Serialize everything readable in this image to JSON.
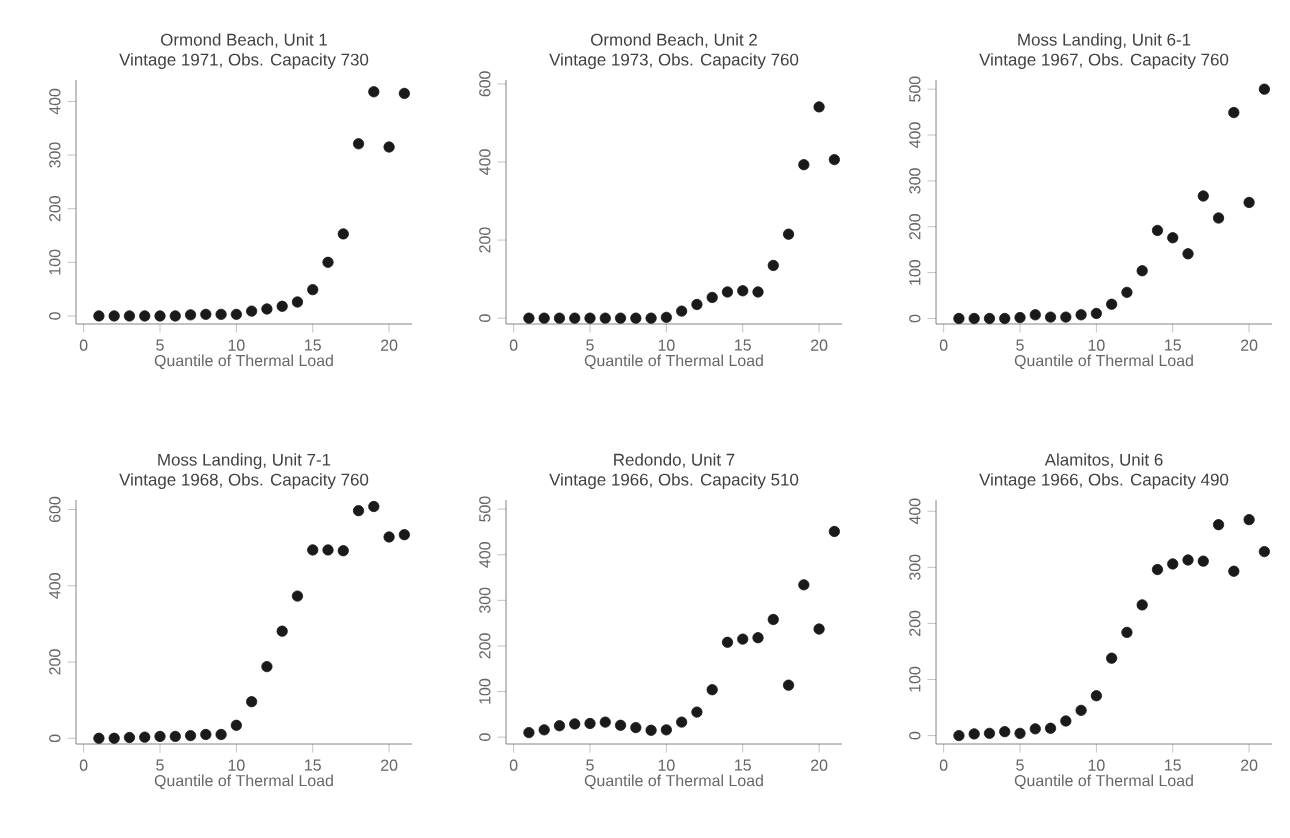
{
  "chart_data": [
    {
      "type": "scatter",
      "title": "Ormond Beach, Unit 1",
      "subtitle": "Vintage 1971, Obs. Capacity 730",
      "xlabel": "Quantile of Thermal Load",
      "marker": "circle",
      "color": "#1a1a1a",
      "x": [
        1,
        2,
        3,
        4,
        5,
        6,
        7,
        8,
        9,
        10,
        11,
        12,
        13,
        14,
        15,
        16,
        17,
        18,
        19,
        20,
        21
      ],
      "values": [
        0,
        0,
        0,
        0,
        0,
        0,
        2,
        3,
        3,
        3,
        9,
        13,
        18,
        26,
        49,
        100,
        153,
        321,
        418,
        315,
        415
      ],
      "xlim": [
        -0.5,
        21.5
      ],
      "ylim": [
        -15,
        440
      ],
      "xticks": [
        0,
        5,
        10,
        15,
        20
      ],
      "yticks": [
        0,
        100,
        200,
        300,
        400
      ]
    },
    {
      "type": "scatter",
      "title": "Ormond Beach, Unit 2",
      "subtitle": "Vintage 1973, Obs. Capacity 760",
      "xlabel": "Quantile of Thermal Load",
      "marker": "circle",
      "color": "#1a1a1a",
      "x": [
        1,
        2,
        3,
        4,
        5,
        6,
        7,
        8,
        9,
        10,
        11,
        12,
        13,
        14,
        15,
        16,
        17,
        18,
        19,
        20,
        21
      ],
      "values": [
        0,
        0,
        0,
        0,
        0,
        0,
        0,
        0,
        0,
        2,
        18,
        35,
        53,
        67,
        70,
        67,
        135,
        215,
        393,
        541,
        406
      ],
      "xlim": [
        -0.5,
        21.5
      ],
      "ylim": [
        -15,
        610
      ],
      "xticks": [
        0,
        5,
        10,
        15,
        20
      ],
      "yticks": [
        0,
        200,
        400,
        600
      ]
    },
    {
      "type": "scatter",
      "title": "Moss Landing, Unit 6-1",
      "subtitle": "Vintage 1967, Obs. Capacity 760",
      "xlabel": "Quantile of Thermal Load",
      "marker": "circle",
      "color": "#1a1a1a",
      "x": [
        1,
        2,
        3,
        4,
        5,
        6,
        7,
        8,
        9,
        10,
        11,
        12,
        13,
        14,
        15,
        16,
        17,
        18,
        19,
        20,
        21
      ],
      "values": [
        0,
        0,
        0,
        0,
        2,
        8,
        3,
        3,
        8,
        11,
        31,
        57,
        104,
        192,
        176,
        141,
        267,
        219,
        449,
        253,
        500
      ],
      "xlim": [
        -0.5,
        21.5
      ],
      "ylim": [
        -12,
        520
      ],
      "xticks": [
        0,
        5,
        10,
        15,
        20
      ],
      "yticks": [
        0,
        100,
        200,
        300,
        400,
        500
      ]
    },
    {
      "type": "scatter",
      "title": "Moss Landing, Unit 7-1",
      "subtitle": "Vintage 1968, Obs. Capacity 760",
      "xlabel": "Quantile of Thermal Load",
      "marker": "circle",
      "color": "#1a1a1a",
      "x": [
        1,
        2,
        3,
        4,
        5,
        6,
        7,
        8,
        9,
        10,
        11,
        12,
        13,
        14,
        15,
        16,
        17,
        18,
        19,
        20,
        21
      ],
      "values": [
        0,
        0,
        2,
        3,
        5,
        5,
        7,
        10,
        10,
        34,
        96,
        188,
        281,
        373,
        494,
        494,
        492,
        597,
        608,
        528,
        534
      ],
      "xlim": [
        -0.5,
        21.5
      ],
      "ylim": [
        -15,
        625
      ],
      "xticks": [
        0,
        5,
        10,
        15,
        20
      ],
      "yticks": [
        0,
        200,
        400,
        600
      ]
    },
    {
      "type": "scatter",
      "title": "Redondo, Unit 7",
      "subtitle": "Vintage 1966, Obs. Capacity 510",
      "xlabel": "Quantile of Thermal Load",
      "marker": "circle",
      "color": "#1a1a1a",
      "x": [
        1,
        2,
        3,
        4,
        5,
        6,
        7,
        8,
        9,
        10,
        11,
        12,
        13,
        14,
        15,
        16,
        17,
        18,
        19,
        20,
        21
      ],
      "values": [
        10,
        16,
        25,
        29,
        30,
        33,
        26,
        21,
        15,
        16,
        33,
        55,
        104,
        208,
        215,
        218,
        258,
        114,
        334,
        237,
        451
      ],
      "xlim": [
        -0.5,
        21.5
      ],
      "ylim": [
        -15,
        520
      ],
      "xticks": [
        0,
        5,
        10,
        15,
        20
      ],
      "yticks": [
        0,
        100,
        200,
        300,
        400,
        500
      ]
    },
    {
      "type": "scatter",
      "title": "Alamitos, Unit 6",
      "subtitle": "Vintage 1966, Obs. Capacity 490",
      "xlabel": "Quantile of Thermal Load",
      "marker": "circle",
      "color": "#1a1a1a",
      "x": [
        1,
        2,
        3,
        4,
        5,
        6,
        7,
        8,
        9,
        10,
        11,
        12,
        13,
        14,
        15,
        16,
        17,
        18,
        19,
        20,
        21
      ],
      "values": [
        0,
        3,
        4,
        7,
        4,
        12,
        13,
        26,
        45,
        71,
        138,
        184,
        233,
        296,
        306,
        313,
        311,
        376,
        293,
        385,
        328
      ],
      "xlim": [
        -0.5,
        21.5
      ],
      "ylim": [
        -15,
        420
      ],
      "xticks": [
        0,
        5,
        10,
        15,
        20
      ],
      "yticks": [
        0,
        100,
        200,
        300,
        400
      ]
    }
  ]
}
